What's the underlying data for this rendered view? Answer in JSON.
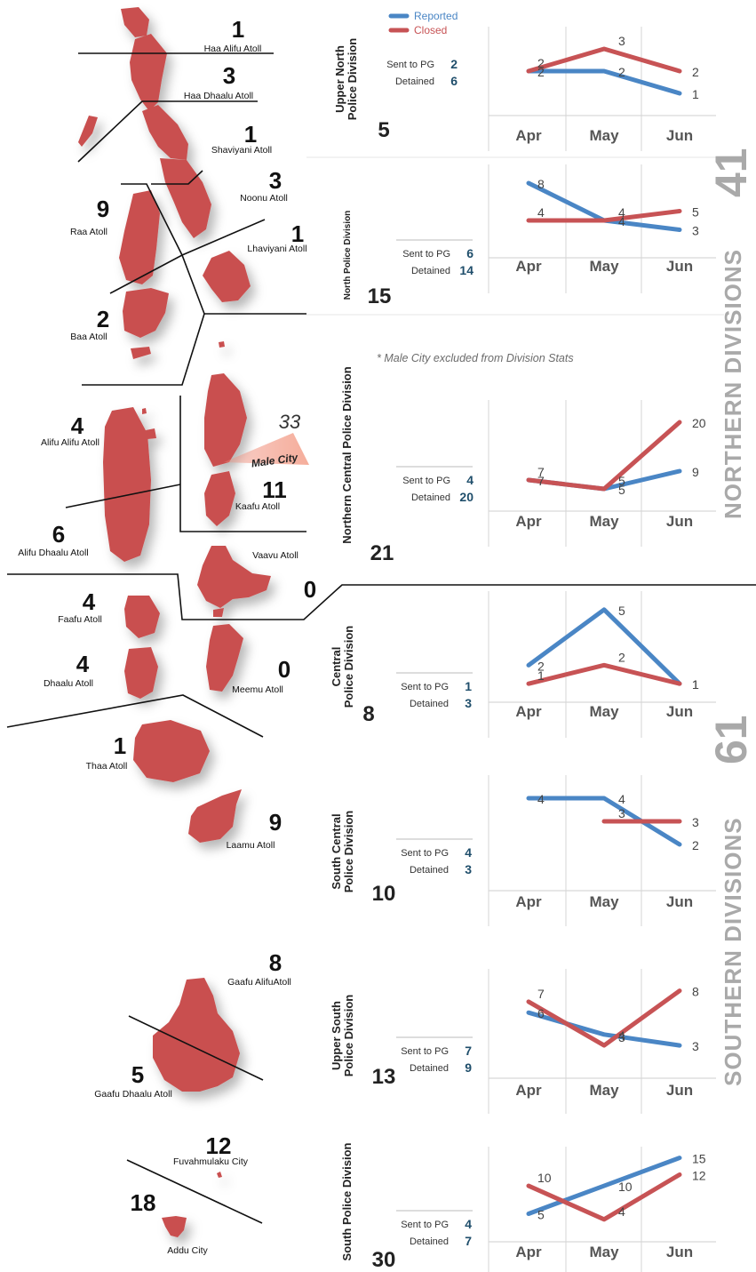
{
  "legend": {
    "reported_label": "Reported",
    "closed_label": "Closed",
    "reported_color": "#4a86c5",
    "closed_color": "#c75355"
  },
  "months": [
    "Apr",
    "May",
    "Jun"
  ],
  "labels": {
    "sent": "Sent to PG",
    "detained": "Detained"
  },
  "map_color": "#c9504f",
  "note": "* Male City excluded from Division Stats",
  "regions": [
    {
      "text": "NORTHERN DIVISIONS",
      "total": "41"
    },
    {
      "text": "SOUTHERN DIVISIONS",
      "total": "61"
    }
  ],
  "chart_data": [
    {
      "type": "line",
      "title": "Upper North Police Division",
      "total": "5",
      "sent": "2",
      "detained": "6",
      "categories": [
        "Apr",
        "May",
        "Jun"
      ],
      "series": [
        {
          "name": "Reported",
          "values": [
            2,
            2,
            1
          ]
        },
        {
          "name": "Closed",
          "values": [
            2,
            3,
            2
          ]
        }
      ]
    },
    {
      "type": "line",
      "title": "North Police Division",
      "total": "15",
      "sent": "6",
      "detained": "14",
      "categories": [
        "Apr",
        "May",
        "Jun"
      ],
      "series": [
        {
          "name": "Reported",
          "values": [
            8,
            4,
            3
          ]
        },
        {
          "name": "Closed",
          "values": [
            4,
            4,
            5
          ]
        }
      ]
    },
    {
      "type": "line",
      "title": "Northern Central Police Division",
      "total": "21",
      "sent": "4",
      "detained": "20",
      "categories": [
        "Apr",
        "May",
        "Jun"
      ],
      "series": [
        {
          "name": "Reported",
          "values": [
            7,
            5,
            9
          ]
        },
        {
          "name": "Closed",
          "values": [
            7,
            5,
            20
          ]
        }
      ]
    },
    {
      "type": "line",
      "title": "Central Police Division",
      "total": "8",
      "sent": "1",
      "detained": "3",
      "categories": [
        "Apr",
        "May",
        "Jun"
      ],
      "series": [
        {
          "name": "Reported",
          "values": [
            2,
            5,
            1
          ]
        },
        {
          "name": "Closed",
          "values": [
            1,
            2,
            1
          ]
        }
      ]
    },
    {
      "type": "line",
      "title": "South Central Police Division",
      "total": "10",
      "sent": "4",
      "detained": "3",
      "categories": [
        "Apr",
        "May",
        "Jun"
      ],
      "series": [
        {
          "name": "Reported",
          "values": [
            4,
            4,
            2
          ]
        },
        {
          "name": "Closed",
          "values": [
            null,
            3,
            3
          ]
        }
      ]
    },
    {
      "type": "line",
      "title": "Upper South Police Division",
      "total": "13",
      "sent": "7",
      "detained": "9",
      "categories": [
        "Apr",
        "May",
        "Jun"
      ],
      "series": [
        {
          "name": "Reported",
          "values": [
            6,
            4,
            3
          ]
        },
        {
          "name": "Closed",
          "values": [
            7,
            3,
            8
          ]
        }
      ]
    },
    {
      "type": "line",
      "title": "South Police Division",
      "total": "30",
      "sent": "4",
      "detained": "7",
      "categories": [
        "Apr",
        "May",
        "Jun"
      ],
      "series": [
        {
          "name": "Reported",
          "values": [
            5,
            10,
            15
          ]
        },
        {
          "name": "Closed",
          "values": [
            10,
            4,
            12
          ]
        }
      ]
    }
  ],
  "atolls": [
    {
      "name": "Haa Alifu Atoll",
      "count": "1"
    },
    {
      "name": "Haa Dhaalu Atoll",
      "count": "3"
    },
    {
      "name": "Shaviyani Atoll",
      "count": "1"
    },
    {
      "name": "Noonu Atoll",
      "count": "3"
    },
    {
      "name": "Lhaviyani Atoll",
      "count": "1"
    },
    {
      "name": "Raa Atoll",
      "count": "9"
    },
    {
      "name": "Baa Atoll",
      "count": "2"
    },
    {
      "name": "Alifu Alifu Atoll",
      "count": "4"
    },
    {
      "name": "Alifu Dhaalu Atoll",
      "count": "6"
    },
    {
      "name": "Kaafu Atoll",
      "count": "11"
    },
    {
      "name": "Vaavu Atoll",
      "count": "0"
    },
    {
      "name": "Faafu Atoll",
      "count": "4"
    },
    {
      "name": "Dhaalu Atoll",
      "count": "4"
    },
    {
      "name": "Meemu Atoll",
      "count": "0"
    },
    {
      "name": "Thaa Atoll",
      "count": "1"
    },
    {
      "name": "Laamu Atoll",
      "count": "9"
    },
    {
      "name": "Gaafu AlifuAtoll",
      "count": "8"
    },
    {
      "name": "Gaafu Dhaalu Atoll",
      "count": "5"
    },
    {
      "name": "Fuvahmulaku City",
      "count": "12"
    },
    {
      "name": "Addu City",
      "count": "18"
    }
  ],
  "male_city": {
    "name": "Male City",
    "count": "33"
  }
}
